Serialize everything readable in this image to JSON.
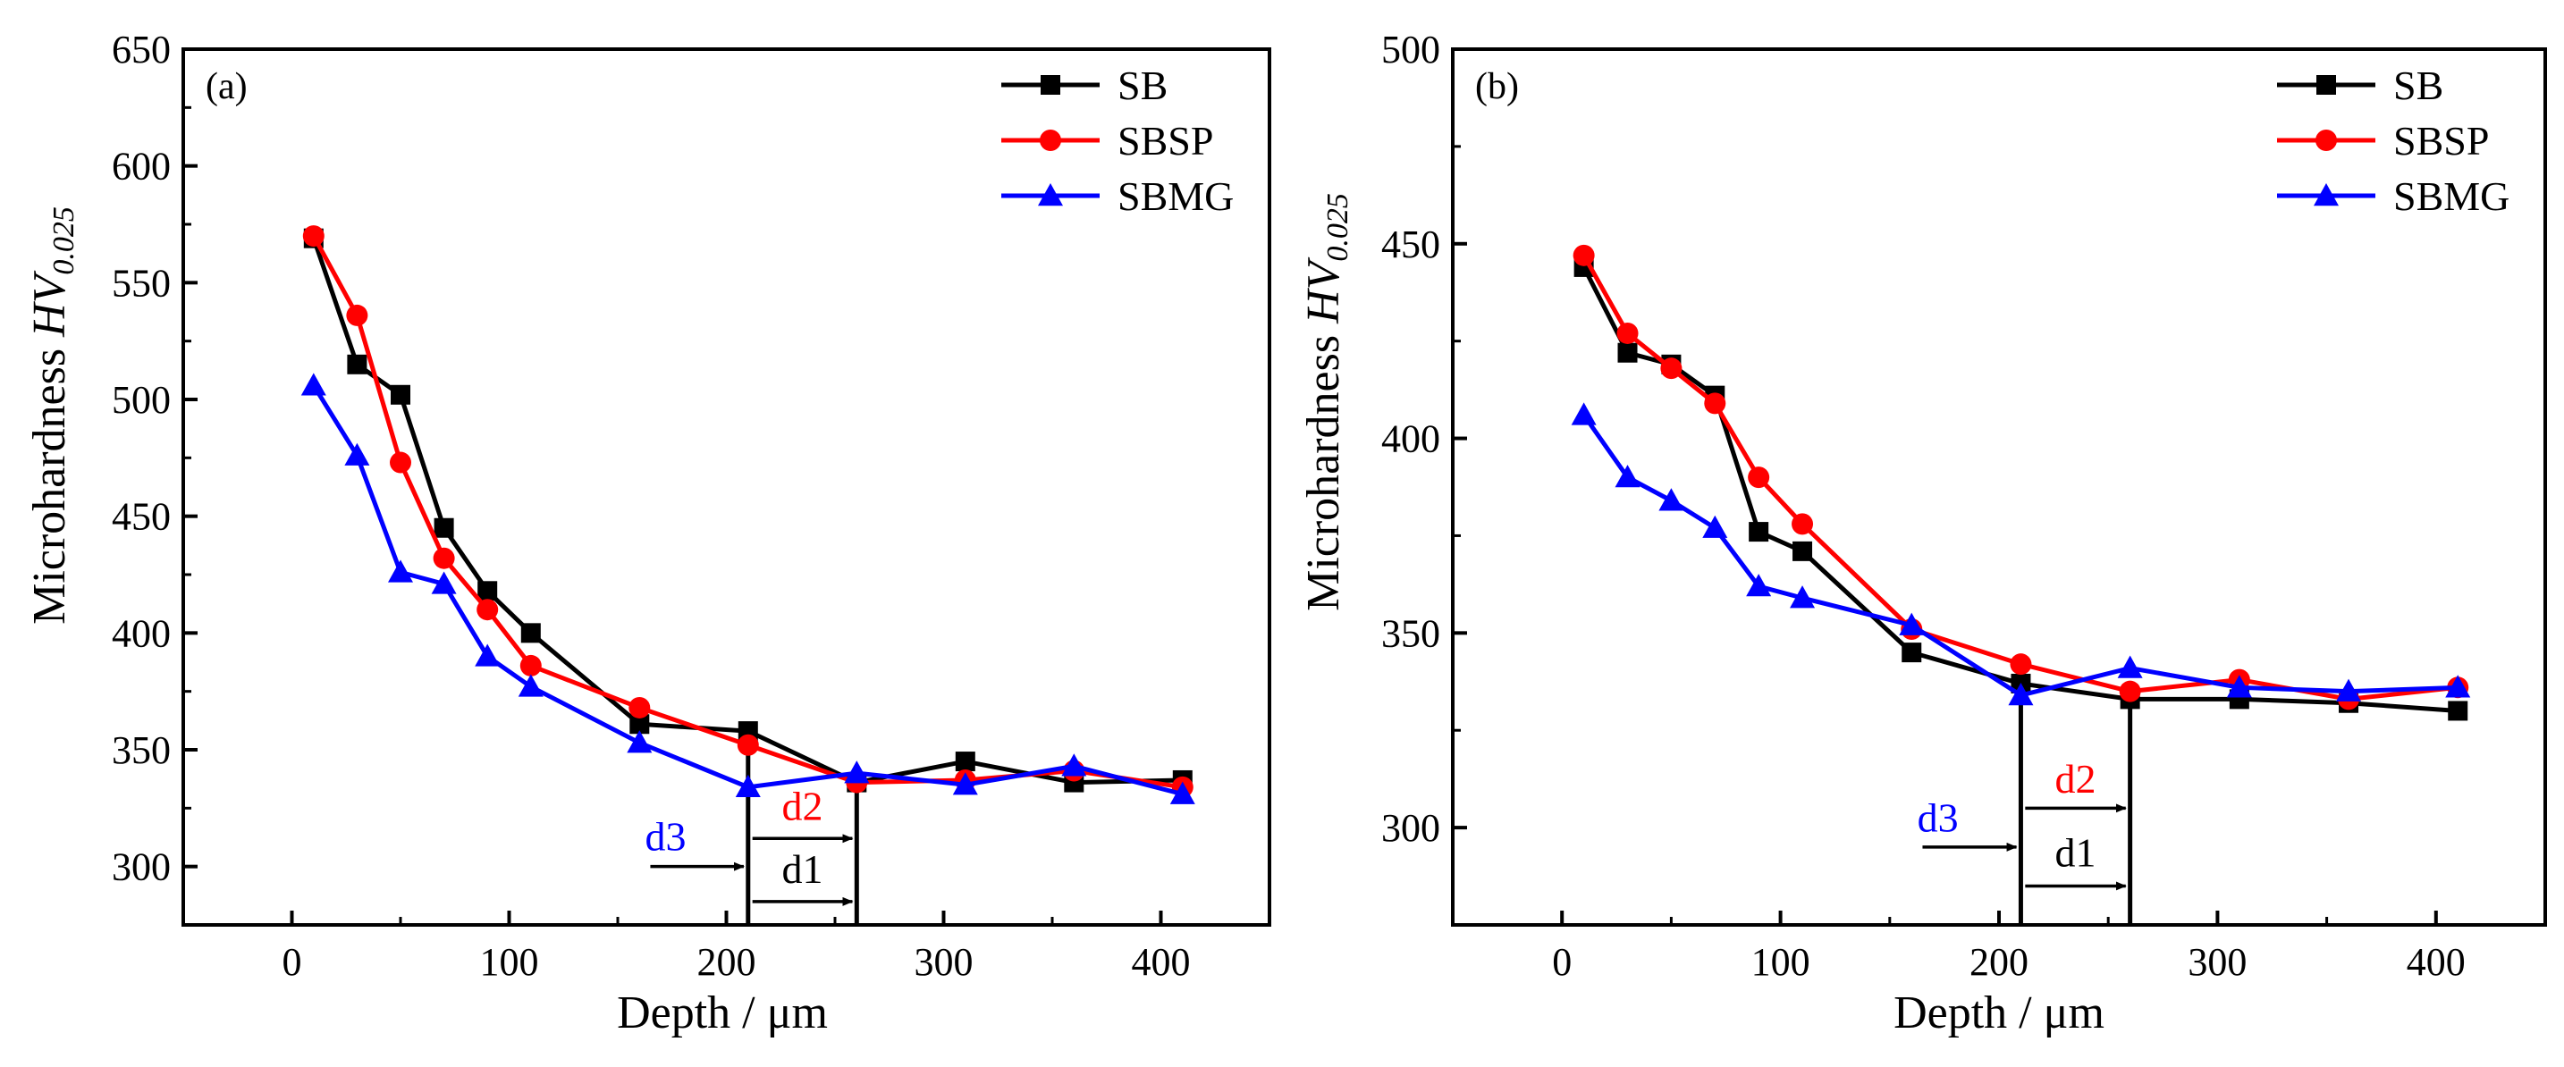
{
  "chart_data": [
    {
      "panel_label": "(a)",
      "type": "line",
      "xlabel": "Depth / μm",
      "ylabel_main": "Microhardness ",
      "ylabel_italic": "HV",
      "ylabel_sub": "0.025",
      "xlim": [
        -50,
        450
      ],
      "ylim": [
        275,
        650
      ],
      "xticks": [
        0,
        100,
        200,
        300,
        400
      ],
      "yticks": [
        300,
        350,
        400,
        450,
        500,
        550,
        600,
        650
      ],
      "legend_position": "top-right",
      "series": [
        {
          "name": "SB",
          "color": "#000000",
          "marker": "square",
          "x": [
            10,
            30,
            50,
            70,
            90,
            110,
            160,
            210,
            260,
            310,
            360,
            410
          ],
          "y": [
            569,
            515,
            502,
            445,
            418,
            400,
            361,
            358,
            336,
            345,
            336,
            337
          ]
        },
        {
          "name": "SBSP",
          "color": "#ff0000",
          "marker": "circle",
          "x": [
            10,
            30,
            50,
            70,
            90,
            110,
            160,
            210,
            260,
            310,
            360,
            410
          ],
          "y": [
            570,
            536,
            473,
            432,
            410,
            386,
            368,
            352,
            336,
            337,
            341,
            334
          ]
        },
        {
          "name": "SBMG",
          "color": "#0000ff",
          "marker": "triangle",
          "x": [
            10,
            30,
            50,
            70,
            90,
            110,
            160,
            210,
            260,
            310,
            360,
            410
          ],
          "y": [
            506,
            476,
            426,
            421,
            390,
            377,
            353,
            334,
            340,
            335,
            343,
            331
          ]
        }
      ],
      "annotations": {
        "vlines": [
          210,
          260
        ],
        "d3": {
          "text": "d3",
          "color": "#0000ff",
          "arrow_from": 165,
          "arrow_to": 208,
          "y": 300,
          "label_x": 172,
          "label_y": 307
        },
        "d2": {
          "text": "d2",
          "color": "#ff0000",
          "arrow_from": 212,
          "arrow_to": 258,
          "y": 312,
          "label_x": 235,
          "label_y": 320
        },
        "d1": {
          "text": "d1",
          "color": "#000000",
          "arrow_from": 212,
          "arrow_to": 258,
          "y": 285,
          "label_x": 235,
          "label_y": 293
        }
      }
    },
    {
      "panel_label": "(b)",
      "type": "line",
      "xlabel": "Depth / μm",
      "ylabel_main": "Microhardness ",
      "ylabel_italic": "HV",
      "ylabel_sub": "0.025",
      "xlim": [
        -50,
        450
      ],
      "ylim": [
        275,
        500
      ],
      "xticks": [
        0,
        100,
        200,
        300,
        400
      ],
      "yticks": [
        300,
        350,
        400,
        450,
        500
      ],
      "legend_position": "top-right",
      "series": [
        {
          "name": "SB",
          "color": "#000000",
          "marker": "square",
          "x": [
            10,
            30,
            50,
            70,
            90,
            110,
            160,
            210,
            260,
            310,
            360,
            410
          ],
          "y": [
            444,
            422,
            419,
            411,
            376,
            371,
            345,
            337,
            333,
            333,
            332,
            330
          ]
        },
        {
          "name": "SBSP",
          "color": "#ff0000",
          "marker": "circle",
          "x": [
            10,
            30,
            50,
            70,
            90,
            110,
            160,
            210,
            260,
            310,
            360,
            410
          ],
          "y": [
            447,
            427,
            418,
            409,
            390,
            378,
            351,
            342,
            335,
            338,
            333,
            336
          ]
        },
        {
          "name": "SBMG",
          "color": "#0000ff",
          "marker": "triangle",
          "x": [
            10,
            30,
            50,
            70,
            90,
            110,
            160,
            210,
            260,
            310,
            360,
            410
          ],
          "y": [
            406,
            390,
            384,
            377,
            362,
            359,
            352,
            334,
            341,
            336,
            335,
            336
          ]
        }
      ],
      "annotations": {
        "vlines": [
          210,
          260
        ],
        "d3": {
          "text": "d3",
          "color": "#0000ff",
          "arrow_from": 165,
          "arrow_to": 208,
          "y": 295,
          "label_x": 172,
          "label_y": 299
        },
        "d2": {
          "text": "d2",
          "color": "#ff0000",
          "arrow_from": 212,
          "arrow_to": 258,
          "y": 305,
          "label_x": 235,
          "label_y": 309
        },
        "d1": {
          "text": "d1",
          "color": "#000000",
          "arrow_from": 212,
          "arrow_to": 258,
          "y": 285,
          "label_x": 235,
          "label_y": 290
        }
      }
    }
  ]
}
